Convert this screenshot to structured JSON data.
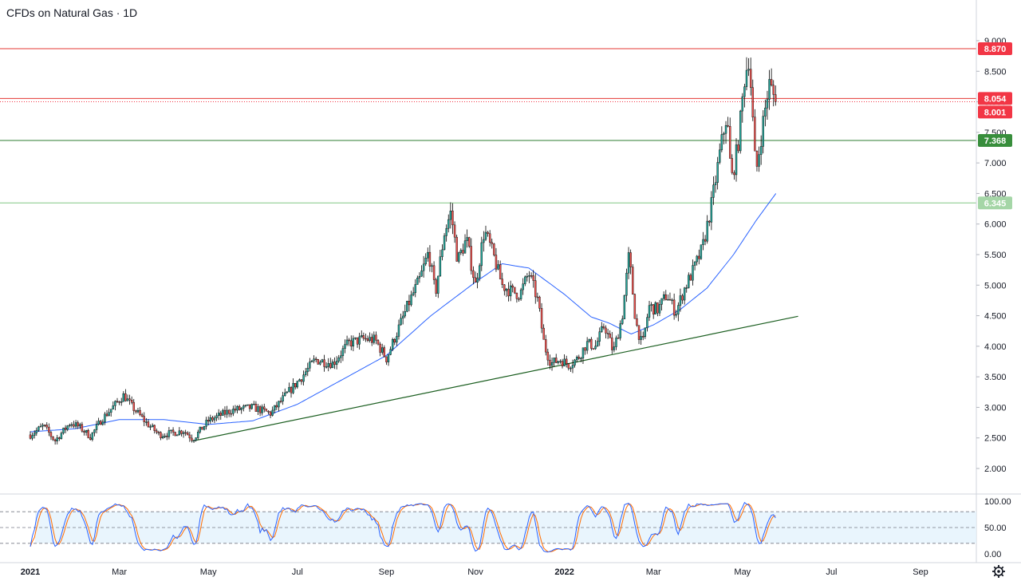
{
  "header": {
    "symbol_title": "CFDs on Natural Gas · 1D"
  },
  "chart_data": {
    "type": "candlestick",
    "title": "CFDs on Natural Gas · 1D",
    "price_axis": {
      "range": [
        1.6,
        9.1
      ],
      "ticks": [
        2.0,
        2.5,
        3.0,
        3.5,
        4.0,
        4.5,
        5.0,
        5.5,
        6.0,
        6.5,
        7.0,
        7.5,
        8.0,
        8.5,
        9.0
      ],
      "tick_labels": [
        "2.000",
        "2.500",
        "3.000",
        "3.500",
        "4.000",
        "4.500",
        "5.000",
        "5.500",
        "6.000",
        "6.500",
        "7.000",
        "7.500",
        "8.000",
        "8.500",
        "9.000"
      ]
    },
    "time_axis": {
      "labels": [
        {
          "text": "2021",
          "month_index": 0,
          "bold": true
        },
        {
          "text": "Mar",
          "month_index": 2,
          "bold": false
        },
        {
          "text": "May",
          "month_index": 4,
          "bold": false
        },
        {
          "text": "Jul",
          "month_index": 6,
          "bold": false
        },
        {
          "text": "Sep",
          "month_index": 8,
          "bold": false
        },
        {
          "text": "Nov",
          "month_index": 10,
          "bold": false
        },
        {
          "text": "2022",
          "month_index": 12,
          "bold": true
        },
        {
          "text": "Mar",
          "month_index": 14,
          "bold": false
        },
        {
          "text": "May",
          "month_index": 16,
          "bold": false
        },
        {
          "text": "Jul",
          "month_index": 18,
          "bold": false
        },
        {
          "text": "Sep",
          "month_index": 20,
          "bold": false
        }
      ]
    },
    "price_path": [
      {
        "m": 0.0,
        "p": 2.55
      },
      {
        "m": 0.3,
        "p": 2.7
      },
      {
        "m": 0.55,
        "p": 2.45
      },
      {
        "m": 0.9,
        "p": 2.75
      },
      {
        "m": 1.1,
        "p": 2.68
      },
      {
        "m": 1.35,
        "p": 2.52
      },
      {
        "m": 1.6,
        "p": 2.8
      },
      {
        "m": 1.85,
        "p": 3.0
      },
      {
        "m": 2.1,
        "p": 3.2
      },
      {
        "m": 2.3,
        "p": 3.0
      },
      {
        "m": 2.6,
        "p": 2.75
      },
      {
        "m": 2.9,
        "p": 2.55
      },
      {
        "m": 3.2,
        "p": 2.58
      },
      {
        "m": 3.45,
        "p": 2.62
      },
      {
        "m": 3.65,
        "p": 2.48
      },
      {
        "m": 4.0,
        "p": 2.78
      },
      {
        "m": 4.5,
        "p": 2.95
      },
      {
        "m": 5.0,
        "p": 3.0
      },
      {
        "m": 5.4,
        "p": 2.9
      },
      {
        "m": 5.8,
        "p": 3.25
      },
      {
        "m": 6.1,
        "p": 3.5
      },
      {
        "m": 6.4,
        "p": 3.78
      },
      {
        "m": 6.8,
        "p": 3.72
      },
      {
        "m": 7.15,
        "p": 4.05
      },
      {
        "m": 7.5,
        "p": 4.12
      },
      {
        "m": 7.75,
        "p": 4.1
      },
      {
        "m": 8.0,
        "p": 3.8
      },
      {
        "m": 8.25,
        "p": 4.25
      },
      {
        "m": 8.5,
        "p": 4.7
      },
      {
        "m": 8.75,
        "p": 5.1
      },
      {
        "m": 8.95,
        "p": 5.55
      },
      {
        "m": 9.1,
        "p": 4.85
      },
      {
        "m": 9.3,
        "p": 5.85
      },
      {
        "m": 9.45,
        "p": 6.2
      },
      {
        "m": 9.6,
        "p": 5.4
      },
      {
        "m": 9.8,
        "p": 5.75
      },
      {
        "m": 10.0,
        "p": 5.0
      },
      {
        "m": 10.2,
        "p": 5.9
      },
      {
        "m": 10.4,
        "p": 5.5
      },
      {
        "m": 10.6,
        "p": 5.0
      },
      {
        "m": 10.8,
        "p": 4.9
      },
      {
        "m": 11.0,
        "p": 4.85
      },
      {
        "m": 11.2,
        "p": 5.2
      },
      {
        "m": 11.4,
        "p": 4.75
      },
      {
        "m": 11.55,
        "p": 4.0
      },
      {
        "m": 11.7,
        "p": 3.72
      },
      {
        "m": 11.9,
        "p": 3.78
      },
      {
        "m": 12.1,
        "p": 3.7
      },
      {
        "m": 12.3,
        "p": 3.8
      },
      {
        "m": 12.5,
        "p": 4.05
      },
      {
        "m": 12.7,
        "p": 4.0
      },
      {
        "m": 12.9,
        "p": 4.35
      },
      {
        "m": 13.1,
        "p": 3.9
      },
      {
        "m": 13.3,
        "p": 4.5
      },
      {
        "m": 13.45,
        "p": 5.5
      },
      {
        "m": 13.6,
        "p": 4.4
      },
      {
        "m": 13.75,
        "p": 4.0
      },
      {
        "m": 13.9,
        "p": 4.65
      },
      {
        "m": 14.1,
        "p": 4.6
      },
      {
        "m": 14.3,
        "p": 4.85
      },
      {
        "m": 14.5,
        "p": 4.55
      },
      {
        "m": 14.7,
        "p": 4.95
      },
      {
        "m": 14.9,
        "p": 5.25
      },
      {
        "m": 15.1,
        "p": 5.6
      },
      {
        "m": 15.3,
        "p": 6.3
      },
      {
        "m": 15.5,
        "p": 7.2
      },
      {
        "m": 15.65,
        "p": 7.8
      },
      {
        "m": 15.75,
        "p": 6.7
      },
      {
        "m": 15.9,
        "p": 7.3
      },
      {
        "m": 16.05,
        "p": 8.4
      },
      {
        "m": 16.15,
        "p": 8.75
      },
      {
        "m": 16.3,
        "p": 6.8
      },
      {
        "m": 16.45,
        "p": 7.6
      },
      {
        "m": 16.6,
        "p": 8.3
      },
      {
        "m": 16.75,
        "p": 8.001
      }
    ],
    "moving_average": {
      "color": "#2962ff",
      "points": [
        {
          "m": 0.0,
          "p": 2.6
        },
        {
          "m": 1.0,
          "p": 2.65
        },
        {
          "m": 2.0,
          "p": 2.8
        },
        {
          "m": 3.0,
          "p": 2.8
        },
        {
          "m": 4.0,
          "p": 2.72
        },
        {
          "m": 5.0,
          "p": 2.78
        },
        {
          "m": 6.0,
          "p": 3.05
        },
        {
          "m": 7.0,
          "p": 3.45
        },
        {
          "m": 8.0,
          "p": 3.85
        },
        {
          "m": 9.0,
          "p": 4.5
        },
        {
          "m": 10.0,
          "p": 5.05
        },
        {
          "m": 10.6,
          "p": 5.35
        },
        {
          "m": 11.2,
          "p": 5.28
        },
        {
          "m": 12.0,
          "p": 4.85
        },
        {
          "m": 12.6,
          "p": 4.48
        },
        {
          "m": 13.0,
          "p": 4.38
        },
        {
          "m": 13.5,
          "p": 4.2
        },
        {
          "m": 14.0,
          "p": 4.35
        },
        {
          "m": 14.6,
          "p": 4.6
        },
        {
          "m": 15.2,
          "p": 4.95
        },
        {
          "m": 15.8,
          "p": 5.5
        },
        {
          "m": 16.3,
          "p": 6.05
        },
        {
          "m": 16.75,
          "p": 6.5
        }
      ]
    },
    "trendline": {
      "color": "#1b5e20",
      "from": {
        "m": 3.65,
        "p": 2.45
      },
      "to": {
        "m": 17.25,
        "p": 4.49
      }
    },
    "horizontal_levels": [
      {
        "value": 8.87,
        "label": "8.870",
        "line_color": "#e53935",
        "badge_color": "#f23645",
        "style": "solid"
      },
      {
        "value": 8.054,
        "label": "8.054",
        "line_color": "#e53935",
        "badge_color": "#f23645",
        "style": "solid"
      },
      {
        "value": 8.001,
        "label": "8.001",
        "line_color": "#f23645",
        "badge_color": "#f23645",
        "style": "dotted"
      },
      {
        "value": 7.368,
        "label": "7.368",
        "line_color": "#2e7d32",
        "badge_color": "#388e3c",
        "style": "solid"
      },
      {
        "value": 6.345,
        "label": "6.345",
        "line_color": "#81c784",
        "badge_color": "#a5d6a7",
        "style": "solid"
      }
    ],
    "oscillator": {
      "range": [
        0,
        100
      ],
      "ticks": [
        0,
        50,
        100
      ],
      "tick_labels": [
        "0.00",
        "50.00",
        "100.00"
      ],
      "upper_band": 80,
      "lower_band": 20,
      "k_color": "#2962ff",
      "d_color": "#ff6d00",
      "band_fill": "#e3f2fd"
    },
    "candle_colors": {
      "up": "#26a69a",
      "down": "#ef5350",
      "wick": "#000000"
    }
  }
}
